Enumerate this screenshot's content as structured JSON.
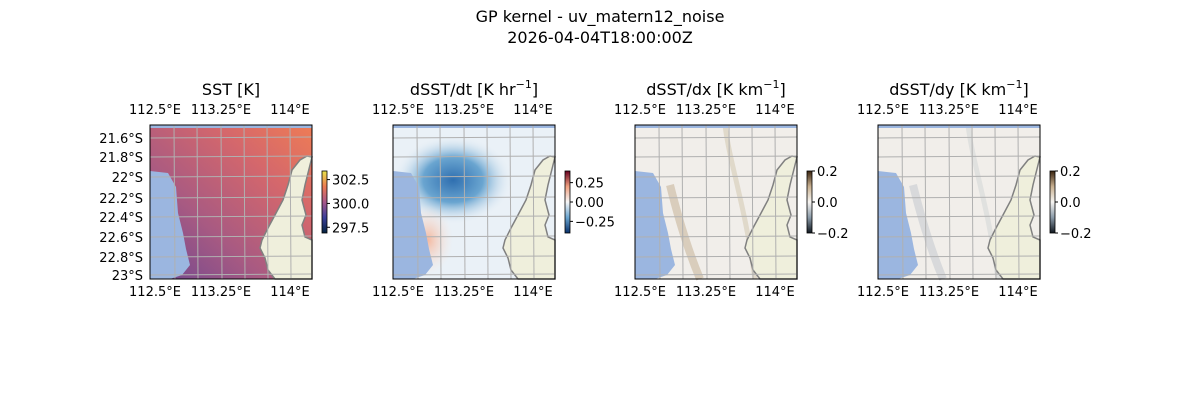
{
  "figure": {
    "title_line1": "GP kernel - uv_matern12_noise",
    "title_line2": "2026-04-04T18:00:00Z"
  },
  "colors": {
    "masked": "#9bb6e0",
    "land": "#efefdc",
    "coast": "#808080",
    "grid": "#b0b0b0"
  },
  "chart_data": [
    {
      "type": "heatmap",
      "title": "SST [K]",
      "title_sup": "",
      "lon_ticks": [
        "112.5°E",
        "113.25°E",
        "114°E"
      ],
      "lat_ticks": [
        "21.6°S",
        "21.8°S",
        "22°S",
        "22.2°S",
        "22.4°S",
        "22.6°S",
        "22.8°S",
        "23°S"
      ],
      "show_lat_labels": true,
      "colorbar": {
        "ticks": [
          "302.5",
          "300.0",
          "297.5"
        ],
        "range": [
          296.9,
          303.4
        ],
        "cmap": "thermal"
      },
      "field": "SST, ~298.5 K bottom-left to ~301.5 K top-right"
    },
    {
      "type": "heatmap",
      "title": "dSST/dt [K hr",
      "title_sup": "−1",
      "title_end": "]",
      "lon_ticks": [
        "112.5°E",
        "113.25°E",
        "114°E"
      ],
      "show_lat_labels": false,
      "colorbar": {
        "ticks": [
          "0.25",
          "0.00",
          "−0.25"
        ],
        "range": [
          -0.4,
          0.4
        ],
        "cmap": "RdBu_r"
      },
      "field": "negative blob ~-0.3 in upper-left centre, slight positive in lower-left"
    },
    {
      "type": "heatmap",
      "title": "dSST/dx [K km",
      "title_sup": "−1",
      "title_end": "]",
      "lon_ticks": [
        "112.5°E",
        "113.25°E",
        "114°E"
      ],
      "show_lat_labels": false,
      "colorbar": {
        "ticks": [
          "0.2",
          "0.0",
          "−0.2"
        ],
        "range": [
          -0.2,
          0.2
        ],
        "cmap": "brown-white-dark"
      },
      "field": "near zero with faint streaks"
    },
    {
      "type": "heatmap",
      "title": "dSST/dy [K km",
      "title_sup": "−1",
      "title_end": "]",
      "lon_ticks": [
        "112.5°E",
        "113.25°E",
        "114°E"
      ],
      "show_lat_labels": false,
      "colorbar": {
        "ticks": [
          "0.2",
          "0.0",
          "−0.2"
        ],
        "range": [
          -0.2,
          0.2
        ],
        "cmap": "brown-white-dark"
      },
      "field": "near zero with faint streaks"
    }
  ]
}
